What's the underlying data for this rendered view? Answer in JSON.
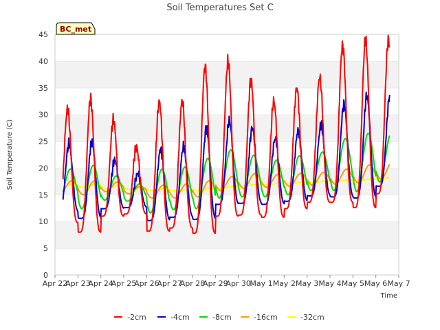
{
  "chart_data": {
    "type": "line",
    "title": "Soil Temperatures Set C",
    "xlabel": "Time",
    "ylabel": "Soil Temperature (C)",
    "ylim": [
      0,
      45
    ],
    "yticks": [
      0,
      5,
      10,
      15,
      20,
      25,
      30,
      35,
      40,
      45
    ],
    "xlim": [
      "2024-04-22",
      "2024-05-07"
    ],
    "xtick_labels": [
      "Apr 22",
      "Apr 23",
      "Apr 24",
      "Apr 25",
      "Apr 26",
      "Apr 27",
      "Apr 28",
      "Apr 29",
      "Apr 30",
      "May 1",
      "May 2",
      "May 3",
      "May 4",
      "May 5",
      "May 6",
      "May 7"
    ],
    "badge": "BC_met",
    "grid": "horizontal bands",
    "legend_position": "bottom",
    "series": [
      {
        "name": "-2cm",
        "color": "#ff0000",
        "daily_min": [
          9.8,
          8.0,
          11.0,
          11.4,
          8.2,
          8.8,
          7.8,
          11.0,
          11.2,
          10.8,
          12.4,
          13.6,
          13.6,
          12.6,
          15.2
        ],
        "daily_max": [
          31.0,
          33.0,
          29.0,
          24.0,
          32.5,
          32.5,
          39.0,
          40.0,
          36.5,
          32.5,
          35.0,
          37.0,
          43.0,
          44.0,
          44.0
        ]
      },
      {
        "name": "-4cm",
        "color": "#0000cc",
        "daily_min": [
          11.8,
          10.6,
          12.4,
          12.6,
          10.2,
          10.8,
          10.4,
          13.2,
          13.4,
          13.2,
          13.8,
          14.8,
          14.6,
          14.4,
          16.6
        ],
        "daily_max": [
          24.5,
          25.0,
          21.5,
          19.0,
          23.5,
          24.0,
          27.5,
          28.8,
          27.5,
          25.5,
          27.0,
          28.0,
          32.0,
          33.5,
          33.5
        ]
      },
      {
        "name": "-8cm",
        "color": "#00dd00",
        "daily_min": [
          13.8,
          12.4,
          14.0,
          13.8,
          11.6,
          12.2,
          12.4,
          14.4,
          14.6,
          14.6,
          15.0,
          15.8,
          15.8,
          15.6,
          17.4
        ],
        "daily_max": [
          19.8,
          20.5,
          18.5,
          17.0,
          19.8,
          20.2,
          21.8,
          23.4,
          22.4,
          21.5,
          22.3,
          23.0,
          25.5,
          26.5,
          26.5
        ]
      },
      {
        "name": "-16cm",
        "color": "#ff9900",
        "daily_min": [
          15.4,
          15.0,
          15.6,
          15.2,
          14.4,
          14.4,
          14.6,
          15.8,
          16.2,
          16.4,
          16.6,
          16.8,
          17.0,
          17.2,
          18.0
        ],
        "daily_max": [
          17.6,
          17.6,
          17.4,
          16.6,
          16.8,
          17.0,
          17.6,
          18.4,
          19.0,
          18.8,
          19.0,
          19.2,
          19.8,
          20.6,
          21.2
        ]
      },
      {
        "name": "-32cm",
        "color": "#ffff00",
        "daily_min": [
          16.4,
          16.4,
          16.2,
          16.0,
          15.8,
          15.7,
          15.8,
          16.2,
          16.6,
          16.8,
          17.0,
          17.2,
          17.4,
          17.6,
          18.0
        ],
        "daily_max": [
          17.0,
          17.0,
          16.8,
          16.4,
          16.2,
          16.0,
          16.2,
          16.6,
          17.0,
          17.2,
          17.4,
          17.6,
          17.8,
          18.0,
          18.4
        ]
      }
    ]
  }
}
